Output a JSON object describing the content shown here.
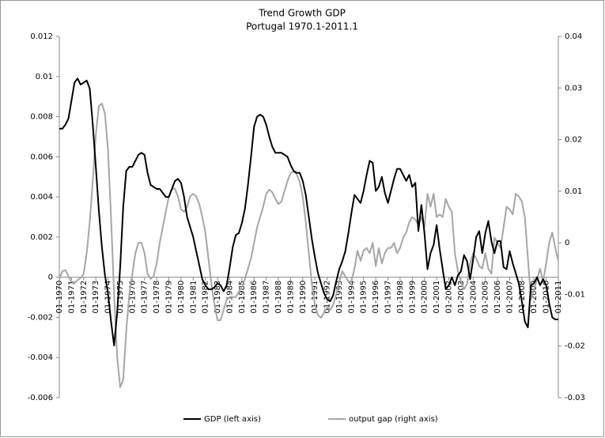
{
  "chart_data": {
    "type": "line",
    "title": "Trend Growth  GDP",
    "subtitle": "Portugal 1970.1-2011.1",
    "categories": [
      "01-1970",
      null,
      null,
      null,
      "01-1971",
      null,
      null,
      null,
      "01-1972",
      null,
      null,
      null,
      "01-1973",
      null,
      null,
      null,
      "01-1974",
      null,
      null,
      null,
      "01-1975",
      null,
      null,
      null,
      "01-1976",
      null,
      null,
      null,
      "01-1977",
      null,
      null,
      null,
      "01-1978",
      null,
      null,
      null,
      "01-1979",
      null,
      null,
      null,
      "01-1980",
      null,
      null,
      null,
      "01-1981",
      null,
      null,
      null,
      "01-1982",
      null,
      null,
      null,
      "01-1983",
      null,
      null,
      null,
      "01-1984",
      null,
      null,
      null,
      "01-1985",
      null,
      null,
      null,
      "01-1986",
      null,
      null,
      null,
      "01-1987",
      null,
      null,
      null,
      "01-1988",
      null,
      null,
      null,
      "01-1989",
      null,
      null,
      null,
      "01-1990",
      null,
      null,
      null,
      "01-1991",
      null,
      null,
      null,
      "01-1992",
      null,
      null,
      null,
      "01-1993",
      null,
      null,
      null,
      "01-1994",
      null,
      null,
      null,
      "01-1995",
      null,
      null,
      null,
      "01-1996",
      null,
      null,
      null,
      "01-1997",
      null,
      null,
      null,
      "01-1998",
      null,
      null,
      null,
      "01-1999",
      null,
      null,
      null,
      "01-2000",
      null,
      null,
      null,
      "01-2001",
      null,
      null,
      null,
      "01-2002",
      null,
      null,
      null,
      "01-2003",
      null,
      null,
      null,
      "01-2004",
      null,
      null,
      null,
      "01-2005",
      null,
      null,
      null,
      "01-2006",
      null,
      null,
      null,
      "01-2007",
      null,
      null,
      null,
      "01-2008",
      null,
      null,
      null,
      "01-2009",
      null,
      null,
      null,
      "01-2010",
      null,
      null,
      null,
      "01-2011"
    ],
    "series": [
      {
        "name": "GDP (left axis)",
        "color": "#000000",
        "axis": "y",
        "values": [
          0.0074,
          0.0074,
          0.0076,
          0.0079,
          0.0088,
          0.0097,
          0.0099,
          0.0096,
          0.0097,
          0.0098,
          0.0094,
          0.0076,
          0.0055,
          0.0033,
          0.0015,
          0.0001,
          -0.0008,
          -0.0022,
          -0.0034,
          -0.0018,
          0.0005,
          0.0035,
          0.0053,
          0.0055,
          0.0055,
          0.0058,
          0.0061,
          0.0062,
          0.0061,
          0.0052,
          0.0046,
          0.0045,
          0.0044,
          0.0044,
          0.0042,
          0.004,
          0.004,
          0.0044,
          0.0048,
          0.0049,
          0.0047,
          0.004,
          0.003,
          0.0025,
          0.002,
          0.0013,
          0.0006,
          -0.0001,
          -0.0004,
          -0.0006,
          -0.0006,
          -0.0005,
          -0.0003,
          -0.0004,
          -0.0007,
          -0.0004,
          0.0005,
          0.0015,
          0.0021,
          0.0022,
          0.0027,
          0.0034,
          0.0046,
          0.006,
          0.0075,
          0.008,
          0.0081,
          0.008,
          0.0076,
          0.007,
          0.0065,
          0.0062,
          0.0062,
          0.0062,
          0.0061,
          0.006,
          0.0056,
          0.0053,
          0.0052,
          0.0052,
          0.0048,
          0.0041,
          0.003,
          0.0019,
          0.001,
          0.0002,
          -0.0003,
          -0.0008,
          -0.0011,
          -0.0012,
          -0.0009,
          -0.0002,
          0.0004,
          0.0008,
          0.0013,
          0.0022,
          0.0032,
          0.0041,
          0.0039,
          0.0037,
          0.0043,
          0.0051,
          0.0058,
          0.0057,
          0.0043,
          0.0045,
          0.005,
          0.0042,
          0.0037,
          0.0043,
          0.0049,
          0.0054,
          0.0054,
          0.0051,
          0.0048,
          0.0051,
          0.0045,
          0.0047,
          0.0023,
          0.0036,
          0.0022,
          0.0004,
          0.0012,
          0.0016,
          0.0026,
          0.0014,
          0.0004,
          -0.0006,
          -0.0004,
          0,
          -0.0004,
          0.0001,
          0.0003,
          0.0011,
          0.0008,
          -0.0001,
          0.0009,
          0.002,
          0.0023,
          0.0012,
          0.0022,
          0.0028,
          0.0018,
          0.0012,
          0.0018,
          0.0018,
          0.0005,
          0.0004,
          0.0013,
          0.0007,
          0.0002,
          -0.0003,
          -0.0012,
          -0.0022,
          -0.0025,
          -0.0004,
          -0.0003,
          0,
          -0.0004,
          -0.0001,
          -0.0004,
          -0.0013,
          -0.002,
          -0.0021,
          -0.0021
        ]
      },
      {
        "name": "output gap (right axis)",
        "color": "#a6a6a6",
        "axis": "y2",
        "values": [
          -0.007,
          -0.0055,
          -0.0053,
          -0.0065,
          -0.0075,
          -0.0078,
          -0.0072,
          -0.0068,
          -0.006,
          -0.002,
          0.004,
          0.012,
          0.021,
          0.0265,
          0.027,
          0.025,
          0.018,
          0.005,
          -0.01,
          -0.022,
          -0.028,
          -0.0265,
          -0.017,
          -0.01,
          -0.006,
          -0.002,
          0,
          0,
          -0.002,
          -0.006,
          -0.007,
          -0.0065,
          -0.004,
          0,
          0.003,
          0.006,
          0.009,
          0.0105,
          0.0105,
          0.009,
          0.0065,
          0.006,
          0.007,
          0.009,
          0.0095,
          0.009,
          0.0075,
          0.005,
          0.002,
          -0.003,
          -0.008,
          -0.012,
          -0.015,
          -0.015,
          -0.013,
          -0.011,
          -0.0105,
          -0.0105,
          -0.0105,
          -0.0095,
          -0.0085,
          -0.007,
          -0.005,
          -0.003,
          0,
          0.003,
          0.005,
          0.007,
          0.0095,
          0.0103,
          0.0098,
          0.0085,
          0.0075,
          0.008,
          0.01,
          0.012,
          0.0135,
          0.0138,
          0.0133,
          0.0118,
          0.009,
          0.004,
          -0.002,
          -0.008,
          -0.012,
          -0.014,
          -0.0145,
          -0.0135,
          -0.0125,
          -0.013,
          -0.012,
          -0.01,
          -0.0075,
          -0.0055,
          -0.0065,
          -0.0075,
          -0.0075,
          -0.005,
          -0.0015,
          -0.0035,
          -0.0015,
          -0.001,
          -0.002,
          0,
          -0.0045,
          -0.001,
          -0.004,
          -0.002,
          -0.001,
          -0.001,
          0,
          -0.002,
          -0.001,
          0.001,
          0.002,
          0.004,
          0.005,
          0.0045,
          0.0035,
          0.005,
          0.003,
          0.0095,
          0.007,
          0.0095,
          0.005,
          0.0055,
          0.005,
          0.0085,
          0.007,
          0.006,
          -0.002,
          -0.0055,
          -0.0075,
          -0.009,
          -0.008,
          -0.004,
          -0.002,
          -0.003,
          -0.0045,
          -0.005,
          -0.002,
          -0.005,
          -0.006,
          0.001,
          0,
          -0.001,
          0.003,
          0.007,
          0.0065,
          0.0055,
          0.0095,
          0.009,
          0.008,
          0.005,
          -0.003,
          -0.011,
          -0.009,
          -0.007,
          -0.005,
          -0.0075,
          -0.004,
          0,
          0.002,
          -0.001,
          -0.0035
        ]
      }
    ],
    "ylim": [
      -0.006,
      0.012
    ],
    "yticks": [
      -0.006,
      -0.004,
      -0.002,
      0,
      0.002,
      0.004,
      0.006,
      0.008,
      0.01,
      0.012
    ],
    "y2lim": [
      -0.03,
      0.04
    ],
    "y2ticks": [
      -0.03,
      -0.02,
      -0.01,
      0,
      0.01,
      0.02,
      0.03,
      0.04
    ],
    "grid": false,
    "legend": "bottom"
  }
}
